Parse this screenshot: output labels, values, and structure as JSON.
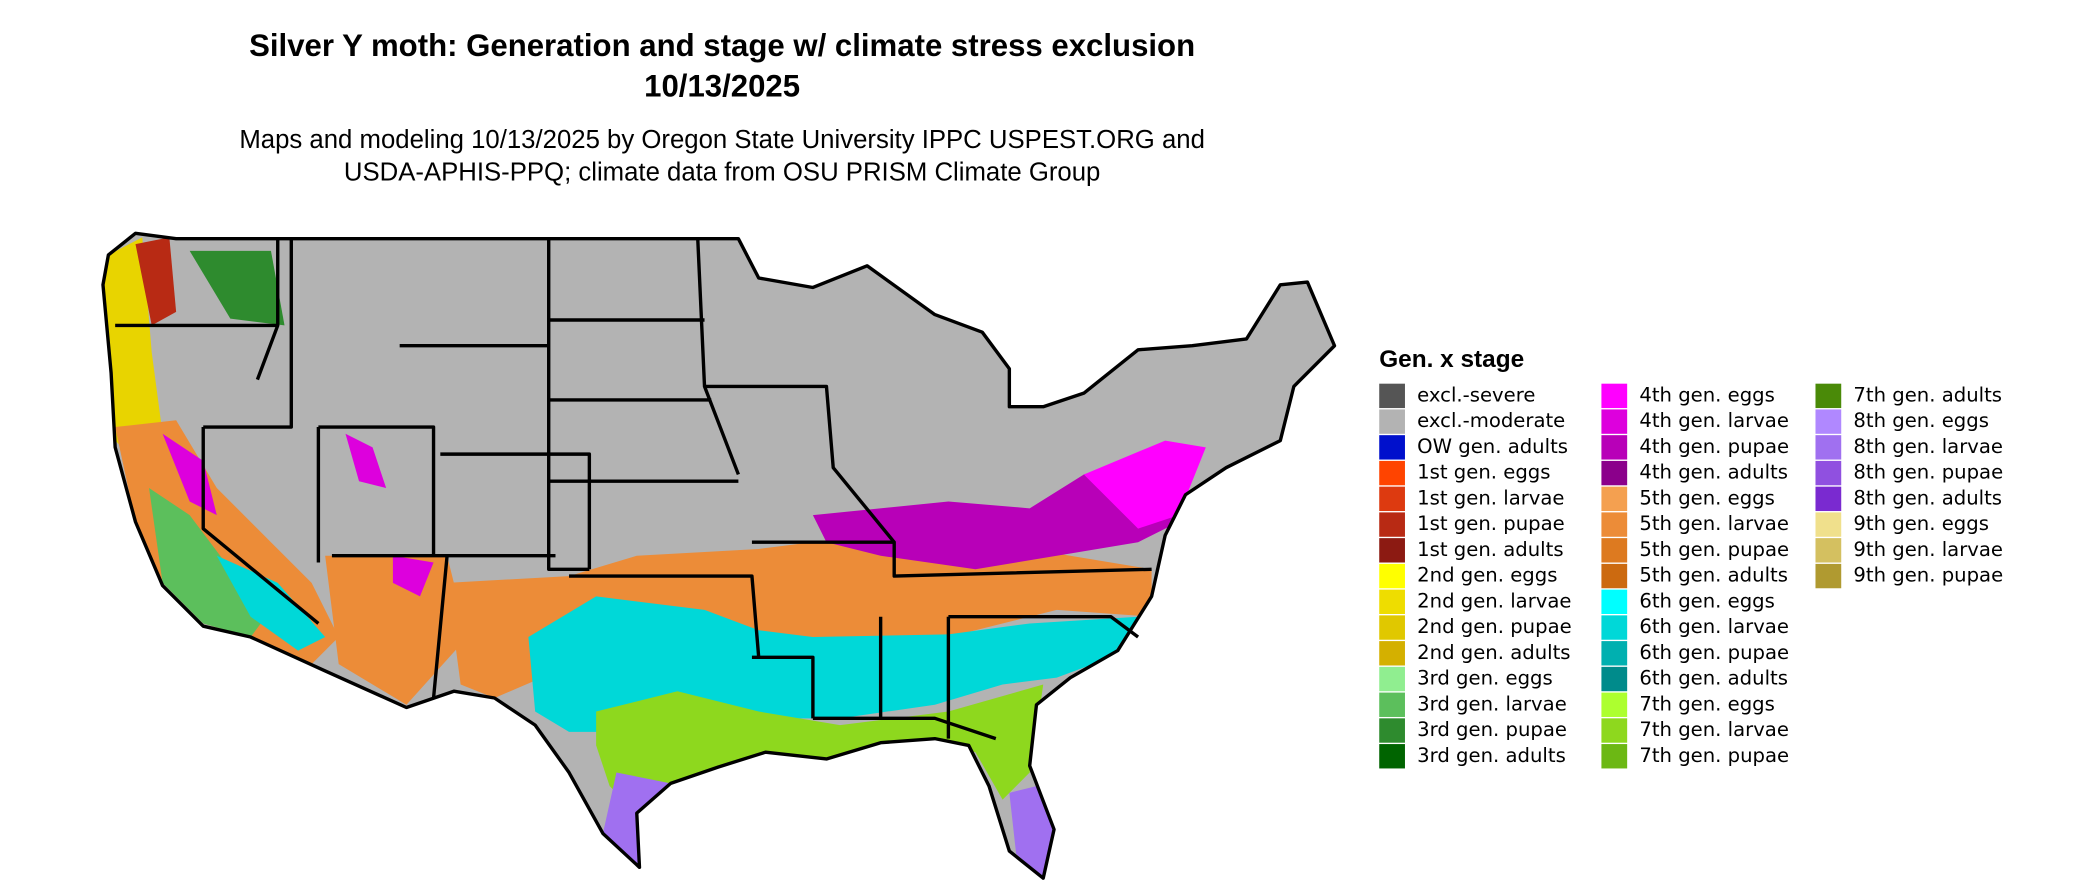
{
  "title": [
    "Silver Y moth: Generation and stage w/ climate stress exclusion",
    "10/13/2025"
  ],
  "subtitle": [
    "Maps and modeling 10/13/2025 by Oregon State University IPPC USPEST.ORG and",
    "USDA-APHIS-PPQ; climate data from OSU PRISM Climate Group"
  ],
  "legend": {
    "title": "Gen. x stage",
    "items": [
      {
        "label": "excl.-severe",
        "color": "#555555"
      },
      {
        "label": "excl.-moderate",
        "color": "#b3b3b3"
      },
      {
        "label": "OW gen. adults",
        "color": "#0010cc"
      },
      {
        "label": "1st gen. eggs",
        "color": "#ff4400"
      },
      {
        "label": "1st gen. larvae",
        "color": "#dd3a10"
      },
      {
        "label": "1st gen. pupae",
        "color": "#b82a14"
      },
      {
        "label": "1st gen. adults",
        "color": "#8c1a12"
      },
      {
        "label": "2nd gen. eggs",
        "color": "#ffff00"
      },
      {
        "label": "2nd gen. larvae",
        "color": "#eedd00"
      },
      {
        "label": "2nd gen. pupae",
        "color": "#e0c800"
      },
      {
        "label": "2nd gen. adults",
        "color": "#d4b000"
      },
      {
        "label": "3rd gen. eggs",
        "color": "#90ee90"
      },
      {
        "label": "3rd gen. larvae",
        "color": "#5cbf5c"
      },
      {
        "label": "3rd gen. pupae",
        "color": "#2e8b2e"
      },
      {
        "label": "3rd gen. adults",
        "color": "#006400"
      },
      {
        "label": "4th gen. eggs",
        "color": "#ff00ff"
      },
      {
        "label": "4th gen. larvae",
        "color": "#dd00dd"
      },
      {
        "label": "4th gen. pupae",
        "color": "#b800b8"
      },
      {
        "label": "4th gen. adults",
        "color": "#8b008b"
      },
      {
        "label": "5th gen. eggs",
        "color": "#f4a050"
      },
      {
        "label": "5th gen. larvae",
        "color": "#ec8c38"
      },
      {
        "label": "5th gen. pupae",
        "color": "#dd7a20"
      },
      {
        "label": "5th gen. adults",
        "color": "#cc6a10"
      },
      {
        "label": "6th gen. eggs",
        "color": "#00ffff"
      },
      {
        "label": "6th gen. larvae",
        "color": "#00d8d8"
      },
      {
        "label": "6th gen. pupae",
        "color": "#00b0b0"
      },
      {
        "label": "6th gen. adults",
        "color": "#008b8b"
      },
      {
        "label": "7th gen. eggs",
        "color": "#adff2f"
      },
      {
        "label": "7th gen. larvae",
        "color": "#8ed81e"
      },
      {
        "label": "7th gen. pupae",
        "color": "#6cb814"
      },
      {
        "label": "7th gen. adults",
        "color": "#4a8a08"
      },
      {
        "label": "8th gen. eggs",
        "color": "#b088ff"
      },
      {
        "label": "8th gen. larvae",
        "color": "#a070f0"
      },
      {
        "label": "8th gen. pupae",
        "color": "#9050e0"
      },
      {
        "label": "8th gen. adults",
        "color": "#7a2ad0"
      },
      {
        "label": "9th gen. eggs",
        "color": "#f0e08c"
      },
      {
        "label": "9th gen. larvae",
        "color": "#d4c060"
      },
      {
        "label": "9th gen. pupae",
        "color": "#b09a30"
      }
    ]
  }
}
